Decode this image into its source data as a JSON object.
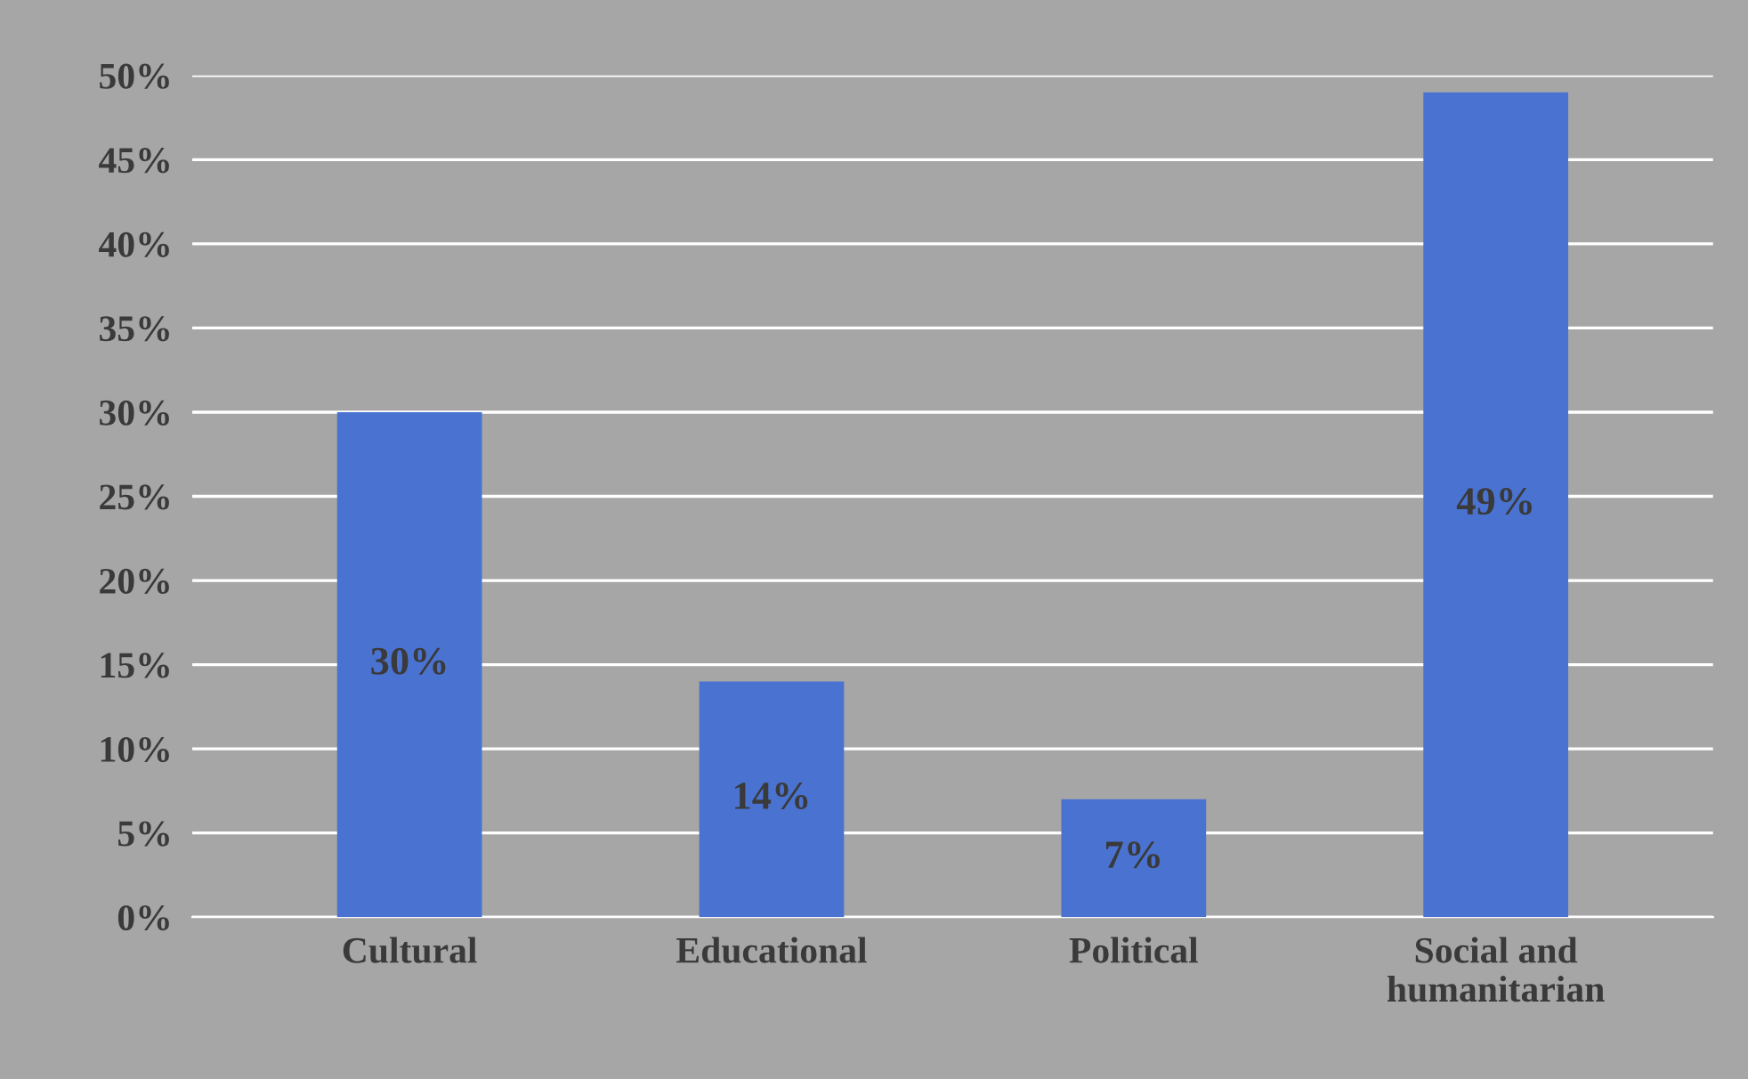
{
  "chart_data": {
    "type": "bar",
    "categories": [
      "Cultural",
      "Educational",
      "Political",
      "Social and\nhumanitarian"
    ],
    "values": [
      30,
      14,
      7,
      49
    ],
    "value_labels": [
      "30%",
      "14%",
      "7%",
      "49%"
    ],
    "color": "#4a73d1",
    "ylim": [
      0,
      50
    ],
    "yticks": [
      {
        "value": 0,
        "label": "0%"
      },
      {
        "value": 5,
        "label": "5%"
      },
      {
        "value": 10,
        "label": "10%"
      },
      {
        "value": 15,
        "label": "15%"
      },
      {
        "value": 20,
        "label": "20%"
      },
      {
        "value": 25,
        "label": "25%"
      },
      {
        "value": 30,
        "label": "30%"
      },
      {
        "value": 35,
        "label": "35%"
      },
      {
        "value": 40,
        "label": "40%"
      },
      {
        "value": 45,
        "label": "45%"
      },
      {
        "value": 50,
        "label": "50%"
      }
    ],
    "grid": "y",
    "legend": false
  }
}
